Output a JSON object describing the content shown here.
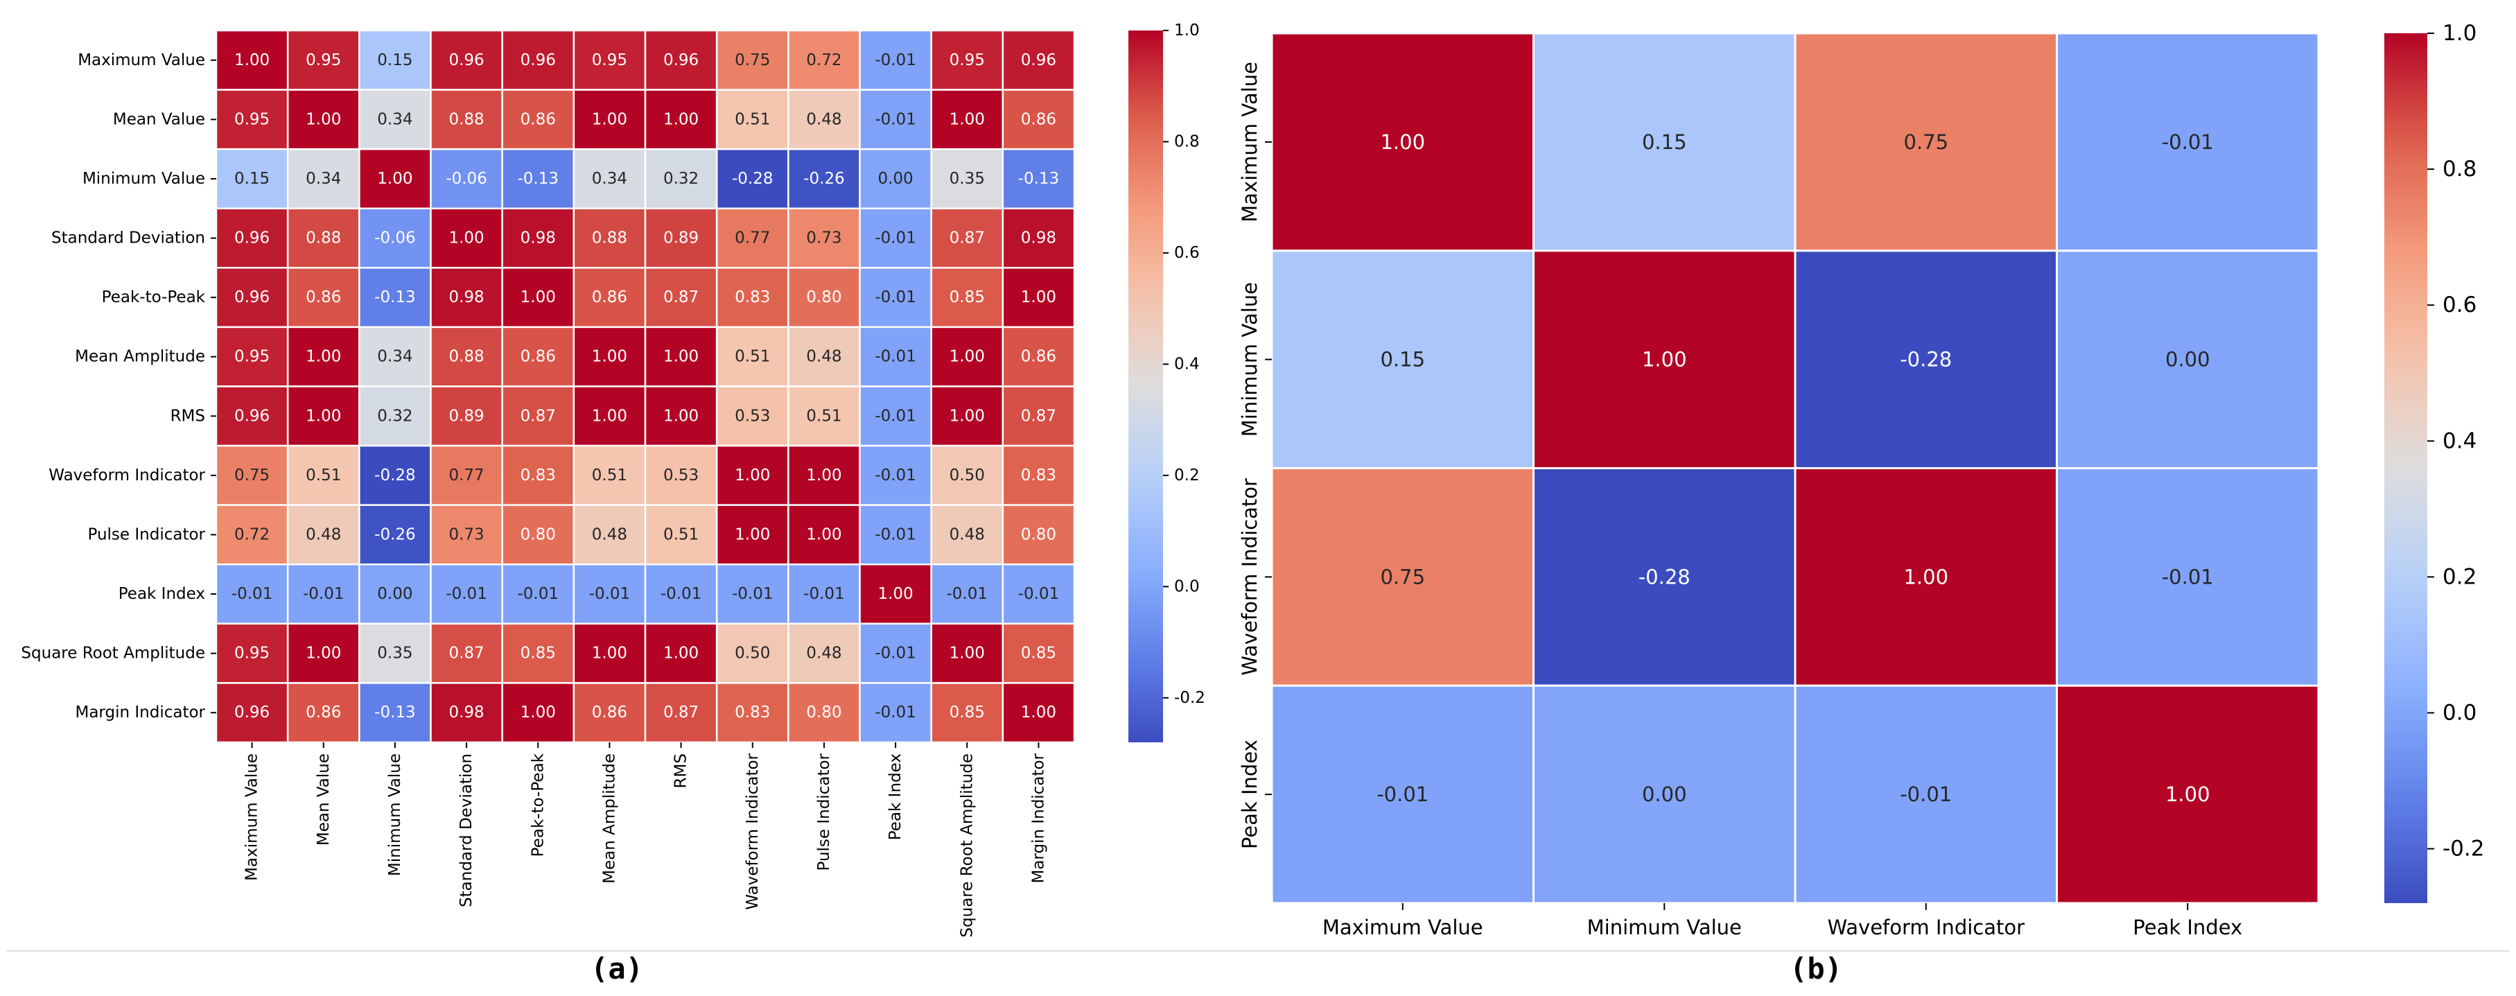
{
  "chart_data": [
    {
      "type": "heatmap",
      "title": "",
      "caption": "(a)",
      "xlabel": "",
      "ylabel": "",
      "labels": [
        "Maximum Value",
        "Mean Value",
        "Minimum Value",
        "Standard Deviation",
        "Peak-to-Peak",
        "Mean Amplitude",
        "RMS",
        "Waveform Indicator",
        "Pulse Indicator",
        "Peak Index",
        "Square Root Amplitude",
        "Margin Indicator"
      ],
      "values": [
        [
          1.0,
          0.95,
          0.15,
          0.96,
          0.96,
          0.95,
          0.96,
          0.75,
          0.72,
          -0.01,
          0.95,
          0.96
        ],
        [
          0.95,
          1.0,
          0.34,
          0.88,
          0.86,
          1.0,
          1.0,
          0.51,
          0.48,
          -0.01,
          1.0,
          0.86
        ],
        [
          0.15,
          0.34,
          1.0,
          -0.06,
          -0.13,
          0.34,
          0.32,
          -0.28,
          -0.26,
          0.0,
          0.35,
          -0.13
        ],
        [
          0.96,
          0.88,
          -0.06,
          1.0,
          0.98,
          0.88,
          0.89,
          0.77,
          0.73,
          -0.01,
          0.87,
          0.98
        ],
        [
          0.96,
          0.86,
          -0.13,
          0.98,
          1.0,
          0.86,
          0.87,
          0.83,
          0.8,
          -0.01,
          0.85,
          1.0
        ],
        [
          0.95,
          1.0,
          0.34,
          0.88,
          0.86,
          1.0,
          1.0,
          0.51,
          0.48,
          -0.01,
          1.0,
          0.86
        ],
        [
          0.96,
          1.0,
          0.32,
          0.89,
          0.87,
          1.0,
          1.0,
          0.53,
          0.51,
          -0.01,
          1.0,
          0.87
        ],
        [
          0.75,
          0.51,
          -0.28,
          0.77,
          0.83,
          0.51,
          0.53,
          1.0,
          1.0,
          -0.01,
          0.5,
          0.83
        ],
        [
          0.72,
          0.48,
          -0.26,
          0.73,
          0.8,
          0.48,
          0.51,
          1.0,
          1.0,
          -0.01,
          0.48,
          0.8
        ],
        [
          -0.01,
          -0.01,
          0.0,
          -0.01,
          -0.01,
          -0.01,
          -0.01,
          -0.01,
          -0.01,
          1.0,
          -0.01,
          -0.01
        ],
        [
          0.95,
          1.0,
          0.35,
          0.87,
          0.85,
          1.0,
          1.0,
          0.5,
          0.48,
          -0.01,
          1.0,
          0.85
        ],
        [
          0.96,
          0.86,
          -0.13,
          0.98,
          1.0,
          0.86,
          0.87,
          0.83,
          0.8,
          -0.01,
          0.85,
          1.0
        ]
      ],
      "colormap": "coolwarm",
      "vmin": -0.28,
      "vmax": 1.0,
      "colorbar_ticks": [
        "1.0",
        "0.8",
        "0.6",
        "0.4",
        "0.2",
        "0.0",
        "-0.2"
      ]
    },
    {
      "type": "heatmap",
      "title": "",
      "caption": "(b)",
      "xlabel": "",
      "ylabel": "",
      "labels": [
        "Maximum Value",
        "Minimum Value",
        "Waveform Indicator",
        "Peak Index"
      ],
      "values": [
        [
          1.0,
          0.15,
          0.75,
          -0.01
        ],
        [
          0.15,
          1.0,
          -0.28,
          0.0
        ],
        [
          0.75,
          -0.28,
          1.0,
          -0.01
        ],
        [
          -0.01,
          0.0,
          -0.01,
          1.0
        ]
      ],
      "colormap": "coolwarm",
      "vmin": -0.28,
      "vmax": 1.0,
      "colorbar_ticks": [
        "1.0",
        "0.8",
        "0.6",
        "0.4",
        "0.2",
        "0.0",
        "-0.2"
      ]
    }
  ]
}
